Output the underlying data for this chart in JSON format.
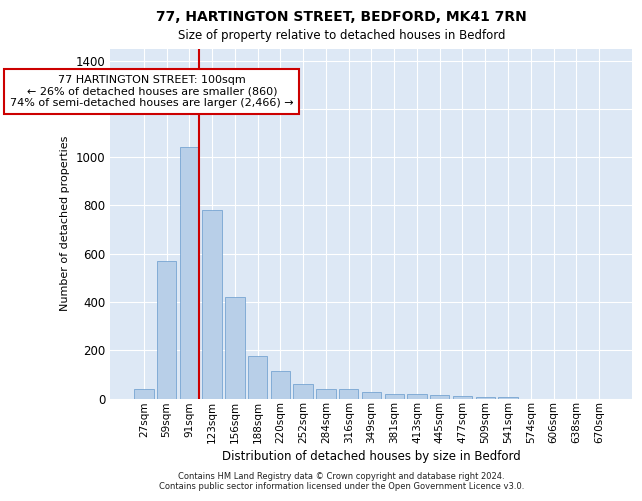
{
  "title_line1": "77, HARTINGTON STREET, BEDFORD, MK41 7RN",
  "title_line2": "Size of property relative to detached houses in Bedford",
  "xlabel": "Distribution of detached houses by size in Bedford",
  "ylabel": "Number of detached properties",
  "footer_line1": "Contains HM Land Registry data © Crown copyright and database right 2024.",
  "footer_line2": "Contains public sector information licensed under the Open Government Licence v3.0.",
  "categories": [
    "27sqm",
    "59sqm",
    "91sqm",
    "123sqm",
    "156sqm",
    "188sqm",
    "220sqm",
    "252sqm",
    "284sqm",
    "316sqm",
    "349sqm",
    "381sqm",
    "413sqm",
    "445sqm",
    "477sqm",
    "509sqm",
    "541sqm",
    "574sqm",
    "606sqm",
    "638sqm",
    "670sqm"
  ],
  "values": [
    40,
    570,
    1040,
    780,
    420,
    175,
    115,
    60,
    40,
    40,
    25,
    20,
    20,
    15,
    10,
    5,
    5,
    0,
    0,
    0,
    0
  ],
  "bar_color": "#b8cfe8",
  "bar_edge_color": "#6699cc",
  "background_color": "#dde8f5",
  "grid_color": "#ffffff",
  "vline_x_index": 2,
  "vline_color": "#cc0000",
  "annotation_line1": "77 HARTINGTON STREET: 100sqm",
  "annotation_line2": "← 26% of detached houses are smaller (860)",
  "annotation_line3": "74% of semi-detached houses are larger (2,466) →",
  "annotation_box_facecolor": "#ffffff",
  "annotation_box_edgecolor": "#cc0000",
  "ylim_max": 1450,
  "yticks": [
    0,
    200,
    400,
    600,
    800,
    1000,
    1200,
    1400
  ]
}
